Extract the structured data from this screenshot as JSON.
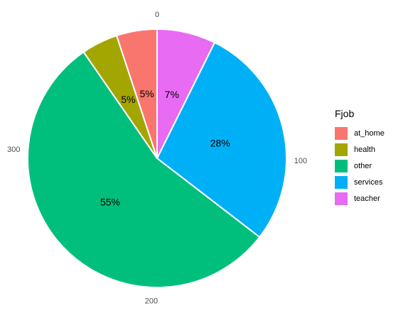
{
  "chart_data": {
    "type": "pie",
    "legend_title": "Fjob",
    "legend_position": "right",
    "categories": [
      "at_home",
      "health",
      "other",
      "services",
      "teacher"
    ],
    "values": [
      20,
      18,
      217,
      111,
      29
    ],
    "colors": [
      "#F8766D",
      "#A3A500",
      "#00BF7D",
      "#00B0F6",
      "#E76BF3"
    ],
    "labels": [
      "5%",
      "5%",
      "55%",
      "28%",
      "7%"
    ],
    "slice_order": [
      "teacher",
      "services",
      "other",
      "health",
      "at_home"
    ],
    "angular_axis_ticks": [
      "0",
      "100",
      "200",
      "300"
    ],
    "angular_axis_tick_values": [
      0,
      100,
      200,
      300
    ],
    "total": 395,
    "direction": "clockwise from top"
  }
}
